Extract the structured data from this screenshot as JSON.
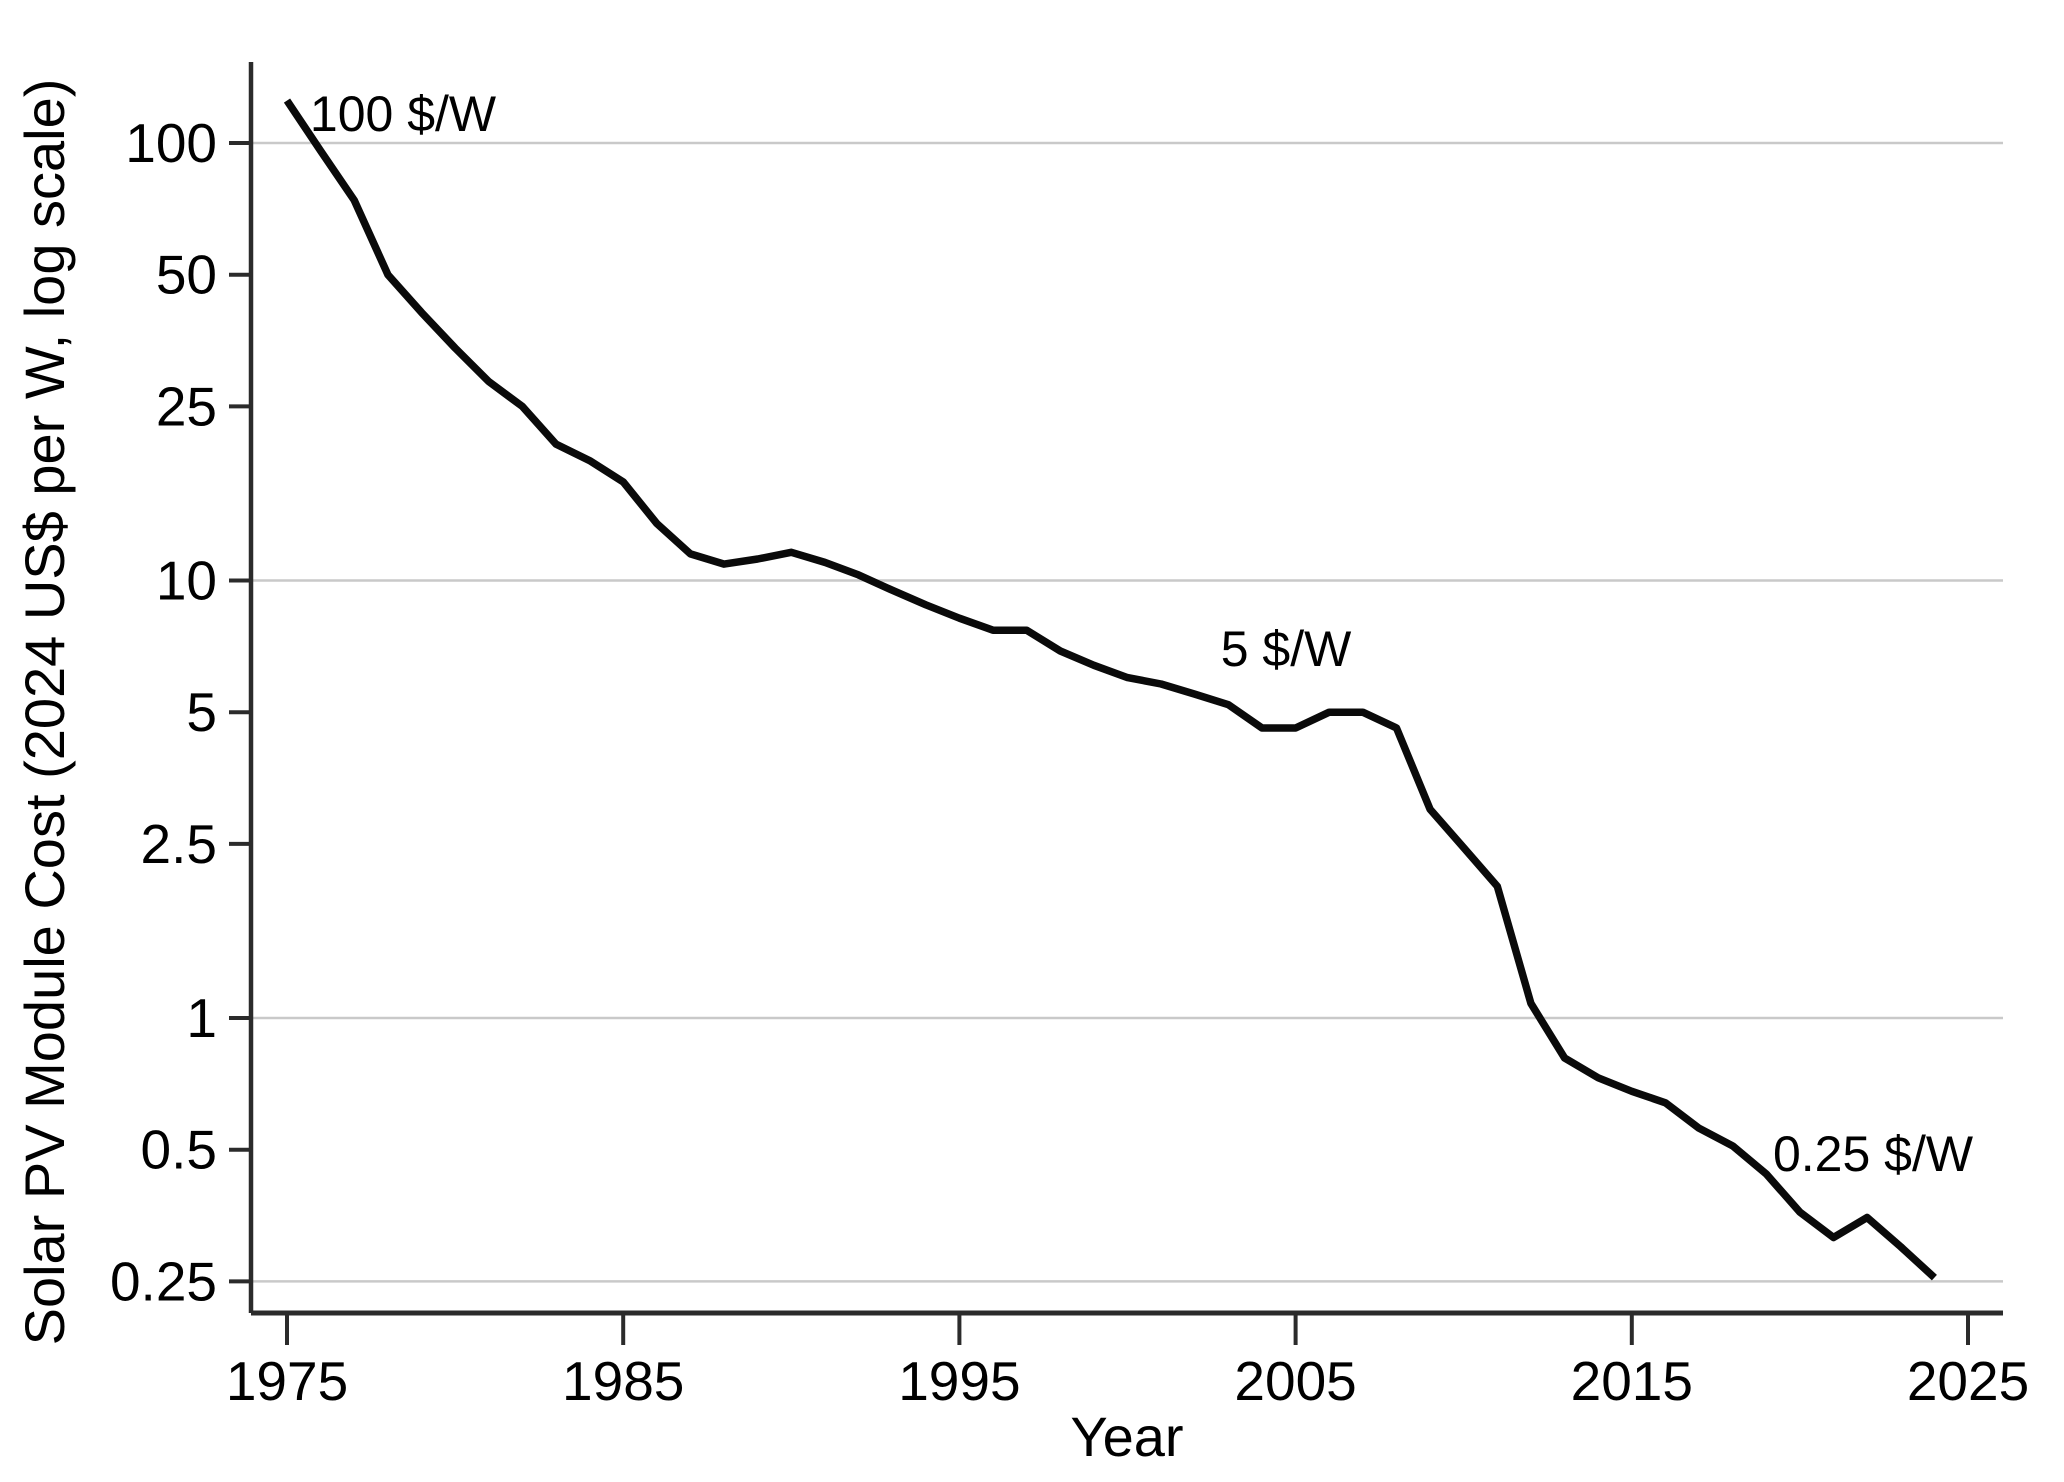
{
  "chart_data": {
    "type": "line",
    "title": "",
    "xlabel": "Year",
    "ylabel": "Solar PV Module Cost (2024 US$ per W, log scale)",
    "yscale": "log",
    "xscale": "linear",
    "xlim": [
      1973.9,
      2026.1
    ],
    "ylim": [
      0.212,
      153
    ],
    "grid": "horizontal gridlines at 100, 10, 1, 0.25 only",
    "legend": "none",
    "x_ticks": [
      "1975",
      "1985",
      "1995",
      "2005",
      "2015",
      "2025"
    ],
    "x_tick_years": [
      1975,
      1985,
      1995,
      2005,
      2015,
      2025
    ],
    "y_ticks": [
      "100",
      "50",
      "25",
      "10",
      "5",
      "2.5",
      "1",
      "0.5",
      "0.25"
    ],
    "y_tick_values": [
      100,
      50,
      25,
      10,
      5,
      2.5,
      1,
      0.5,
      0.25
    ],
    "y_gridline_values": [
      100,
      10,
      1,
      0.25
    ],
    "x": [
      1975,
      1976,
      1977,
      1978,
      1979,
      1980,
      1981,
      1982,
      1983,
      1984,
      1985,
      1986,
      1987,
      1988,
      1989,
      1990,
      1991,
      1992,
      1993,
      1994,
      1995,
      1996,
      1997,
      1998,
      1999,
      2000,
      2001,
      2002,
      2003,
      2004,
      2005,
      2006,
      2007,
      2008,
      2009,
      2010,
      2011,
      2012,
      2013,
      2014,
      2015,
      2016,
      2017,
      2018,
      2019,
      2020,
      2021,
      2022,
      2023,
      2024
    ],
    "series": [
      {
        "name": "Solar PV module cost (2024 US$ per W)",
        "values": [
          125,
          96,
          74,
          50,
          41,
          34,
          28.5,
          25,
          20.5,
          18.8,
          16.8,
          13.5,
          11.5,
          10.9,
          11.2,
          11.6,
          11.0,
          10.3,
          9.5,
          8.8,
          8.2,
          7.7,
          7.7,
          6.9,
          6.4,
          6.0,
          5.8,
          5.5,
          5.2,
          4.6,
          4.6,
          5.0,
          5.0,
          4.6,
          3.0,
          2.45,
          2.0,
          1.08,
          0.81,
          0.73,
          0.68,
          0.64,
          0.56,
          0.51,
          0.44,
          0.36,
          0.315,
          0.35,
          0.3,
          0.255
        ]
      }
    ],
    "annotations": [
      {
        "text": "100 $/W",
        "near_year": 1976,
        "near_value": 100
      },
      {
        "text": "5 $/W",
        "near_year": 2004,
        "near_value": 5
      },
      {
        "text": "0.25 $/W",
        "near_year": 2022,
        "near_value": 0.25
      }
    ],
    "colors": {
      "line": "#0a0a0a",
      "grid": "#c9c9c9",
      "axis": "#2b2b2b",
      "text": "#000000",
      "background": "#ffffff"
    }
  }
}
